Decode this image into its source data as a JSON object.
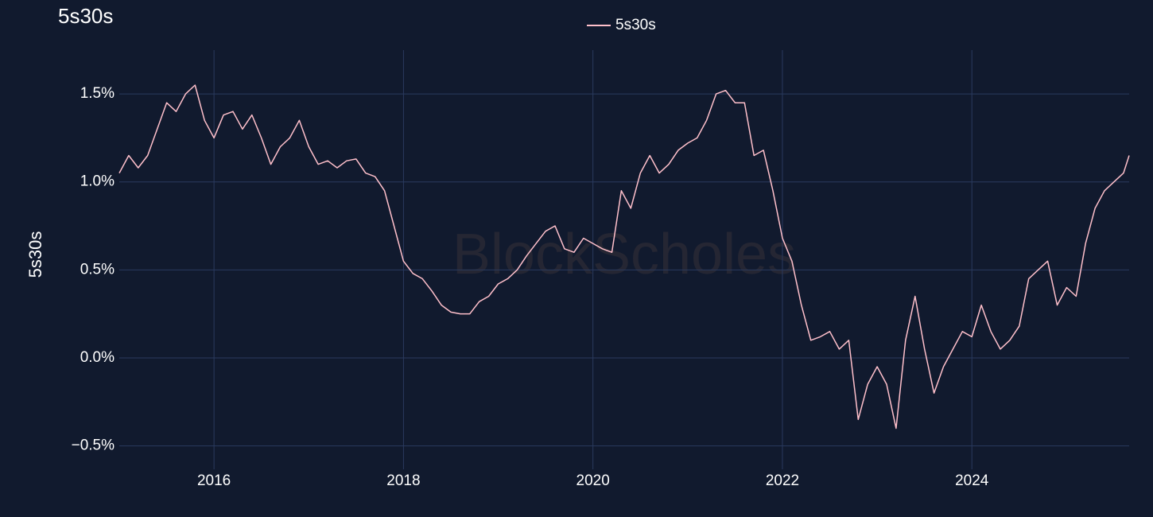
{
  "chart_data": {
    "type": "line",
    "title": "5s30s",
    "y_label": "5s30s",
    "watermark": "BlockScholes",
    "x": [
      2015.0,
      2015.1,
      2015.2,
      2015.3,
      2015.4,
      2015.5,
      2015.6,
      2015.7,
      2015.8,
      2015.9,
      2016.0,
      2016.1,
      2016.2,
      2016.3,
      2016.4,
      2016.5,
      2016.6,
      2016.7,
      2016.8,
      2016.9,
      2017.0,
      2017.1,
      2017.2,
      2017.3,
      2017.4,
      2017.5,
      2017.6,
      2017.7,
      2017.8,
      2017.9,
      2018.0,
      2018.1,
      2018.2,
      2018.3,
      2018.4,
      2018.5,
      2018.6,
      2018.7,
      2018.8,
      2018.9,
      2019.0,
      2019.1,
      2019.2,
      2019.3,
      2019.4,
      2019.5,
      2019.6,
      2019.7,
      2019.8,
      2019.9,
      2020.0,
      2020.1,
      2020.2,
      2020.3,
      2020.4,
      2020.5,
      2020.6,
      2020.7,
      2020.8,
      2020.9,
      2021.0,
      2021.1,
      2021.2,
      2021.3,
      2021.4,
      2021.5,
      2021.6,
      2021.7,
      2021.8,
      2021.9,
      2022.0,
      2022.1,
      2022.2,
      2022.3,
      2022.4,
      2022.5,
      2022.6,
      2022.7,
      2022.8,
      2022.9,
      2023.0,
      2023.1,
      2023.2,
      2023.3,
      2023.4,
      2023.5,
      2023.6,
      2023.7,
      2023.8,
      2023.9,
      2024.0,
      2024.1,
      2024.2,
      2024.3,
      2024.4,
      2024.5,
      2024.6,
      2024.7,
      2024.8,
      2024.9,
      2025.0,
      2025.1,
      2025.2,
      2025.3,
      2025.4,
      2025.5,
      2025.6,
      2025.66
    ],
    "series": [
      {
        "name": "5s30s",
        "color": "#ffc0cb",
        "values": [
          1.05,
          1.15,
          1.08,
          1.15,
          1.3,
          1.45,
          1.4,
          1.5,
          1.55,
          1.35,
          1.25,
          1.38,
          1.4,
          1.3,
          1.38,
          1.25,
          1.1,
          1.2,
          1.25,
          1.35,
          1.2,
          1.1,
          1.12,
          1.08,
          1.12,
          1.13,
          1.05,
          1.03,
          0.95,
          0.75,
          0.55,
          0.48,
          0.45,
          0.38,
          0.3,
          0.26,
          0.25,
          0.25,
          0.32,
          0.35,
          0.42,
          0.45,
          0.5,
          0.58,
          0.65,
          0.72,
          0.75,
          0.62,
          0.6,
          0.68,
          0.65,
          0.62,
          0.6,
          0.95,
          0.85,
          1.05,
          1.15,
          1.05,
          1.1,
          1.18,
          1.22,
          1.25,
          1.35,
          1.5,
          1.52,
          1.45,
          1.45,
          1.15,
          1.18,
          0.95,
          0.68,
          0.55,
          0.3,
          0.1,
          0.12,
          0.15,
          0.05,
          0.1,
          -0.35,
          -0.15,
          -0.05,
          -0.15,
          -0.4,
          0.1,
          0.35,
          0.05,
          -0.2,
          -0.05,
          0.05,
          0.15,
          0.12,
          0.3,
          0.15,
          0.05,
          0.1,
          0.18,
          0.45,
          0.5,
          0.55,
          0.3,
          0.4,
          0.35,
          0.65,
          0.85,
          0.95,
          1.0,
          1.05,
          1.15
        ]
      }
    ],
    "xlim": [
      2015.0,
      2025.66
    ],
    "xticks": [
      2016,
      2018,
      2020,
      2022,
      2024
    ],
    "ylim": [
      -0.633,
      1.749
    ],
    "yticks": [
      {
        "value": -0.5,
        "label": "−0.5%"
      },
      {
        "value": 0,
        "label": "0.0%"
      },
      {
        "value": 0.5,
        "label": "0.5%"
      },
      {
        "value": 1,
        "label": "1.0%"
      },
      {
        "value": 1.5,
        "label": "1.5%"
      }
    ],
    "grid": true
  }
}
